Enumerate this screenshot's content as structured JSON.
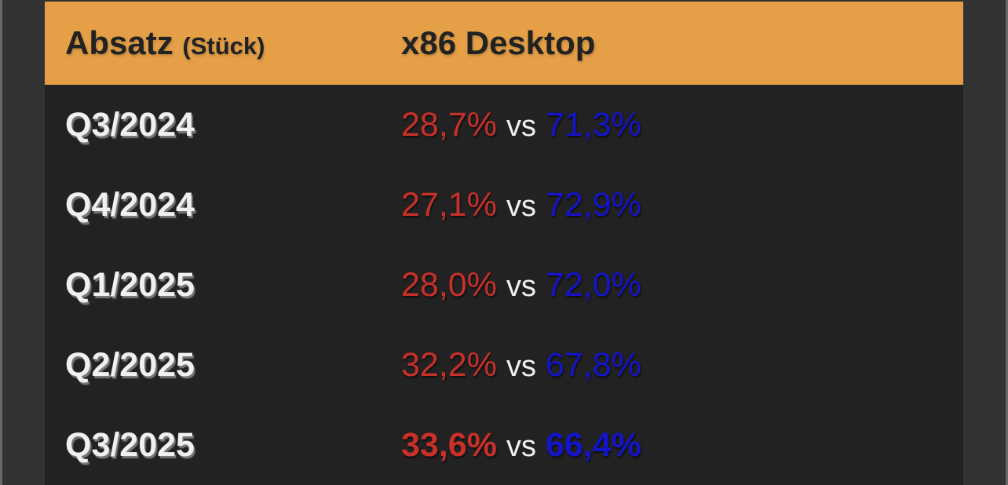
{
  "colors": {
    "header_bg": "#e5a047",
    "body_bg": "#222222",
    "red": "#c8302a",
    "blue": "#1414c8"
  },
  "header": {
    "col1": "Absatz",
    "col1_unit": "(Stück)",
    "col2": "x86 Desktop"
  },
  "rows": [
    {
      "period": "Q3/2024",
      "left": "28,7%",
      "vs": "vs",
      "right": "71,3%"
    },
    {
      "period": "Q4/2024",
      "left": "27,1%",
      "vs": "vs",
      "right": "72,9%"
    },
    {
      "period": "Q1/2025",
      "left": "28,0%",
      "vs": "vs",
      "right": "72,0%"
    },
    {
      "period": "Q2/2025",
      "left": "32,2%",
      "vs": "vs",
      "right": "67,8%"
    },
    {
      "period": "Q3/2025",
      "left": "33,6%",
      "vs": "vs",
      "right": "66,4%",
      "emphasized": true
    }
  ]
}
